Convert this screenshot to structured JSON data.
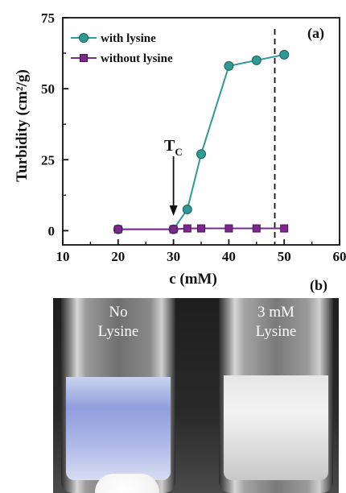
{
  "panel_a_label": "(a)",
  "panel_b_label": "(b)",
  "annotation_tc": "T",
  "annotation_tc_sub": "C",
  "chart_data": {
    "type": "line",
    "xlabel": "c (mM)",
    "ylabel": "Turbidity (cm²/g)",
    "xlim": [
      10,
      60
    ],
    "ylim": [
      -5,
      75
    ],
    "xticks": [
      10,
      20,
      30,
      40,
      50,
      60
    ],
    "yticks": [
      0,
      25,
      50,
      75
    ],
    "legend_position": "top-left",
    "grid": false,
    "series": [
      {
        "name": "with lysine",
        "color": "#2e9a95",
        "marker": "circle",
        "x": [
          20,
          30,
          32.5,
          35,
          40,
          45,
          50
        ],
        "y": [
          0.5,
          0.5,
          7.5,
          27,
          58,
          60,
          62
        ]
      },
      {
        "name": "without  lysine",
        "color": "#7b2a8c",
        "marker": "square",
        "x": [
          20,
          30,
          32.5,
          35,
          40,
          45,
          50
        ],
        "y": [
          0.5,
          0.5,
          0.8,
          0.8,
          0.8,
          0.8,
          0.8
        ]
      }
    ],
    "vertical_dashed_line_x": 48.3,
    "arrow_at_x": 30
  },
  "photo": {
    "left_vial_caption_line1": "No",
    "left_vial_caption_line2": "Lysine",
    "right_vial_caption_line1": "3 mM",
    "right_vial_caption_line2": "Lysine"
  }
}
